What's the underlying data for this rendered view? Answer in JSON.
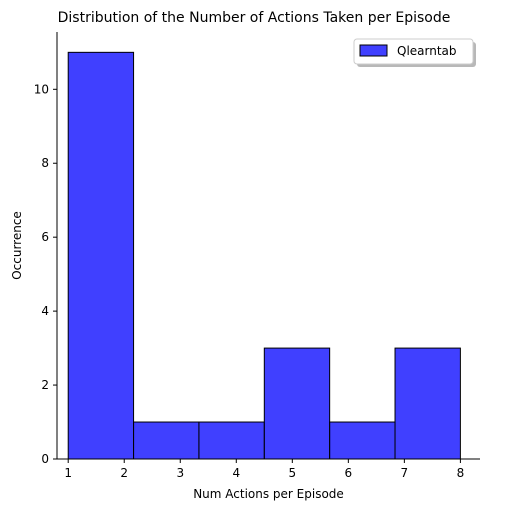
{
  "chart_data": {
    "type": "bar",
    "histogram": true,
    "title": "Distribution of the Number of Actions Taken per Episode",
    "xlabel": "Num Actions per Episode",
    "ylabel": "Occurrence",
    "xlim": [
      0.8,
      8.35
    ],
    "ylim": [
      0,
      11.55
    ],
    "x_ticks": [
      1,
      2,
      3,
      4,
      5,
      6,
      7,
      8
    ],
    "y_ticks": [
      0,
      2,
      4,
      6,
      8,
      10
    ],
    "bin_edges": [
      1.0,
      2.1667,
      3.3333,
      4.5,
      5.6667,
      6.8333,
      8.0
    ],
    "series": [
      {
        "name": "Qlearntab",
        "values": [
          11,
          1,
          1,
          3,
          1,
          3
        ],
        "color": "#0000ff",
        "alpha": 0.75
      }
    ],
    "grid": false,
    "legend_position": "top-right",
    "spines": [
      "left",
      "bottom"
    ]
  }
}
